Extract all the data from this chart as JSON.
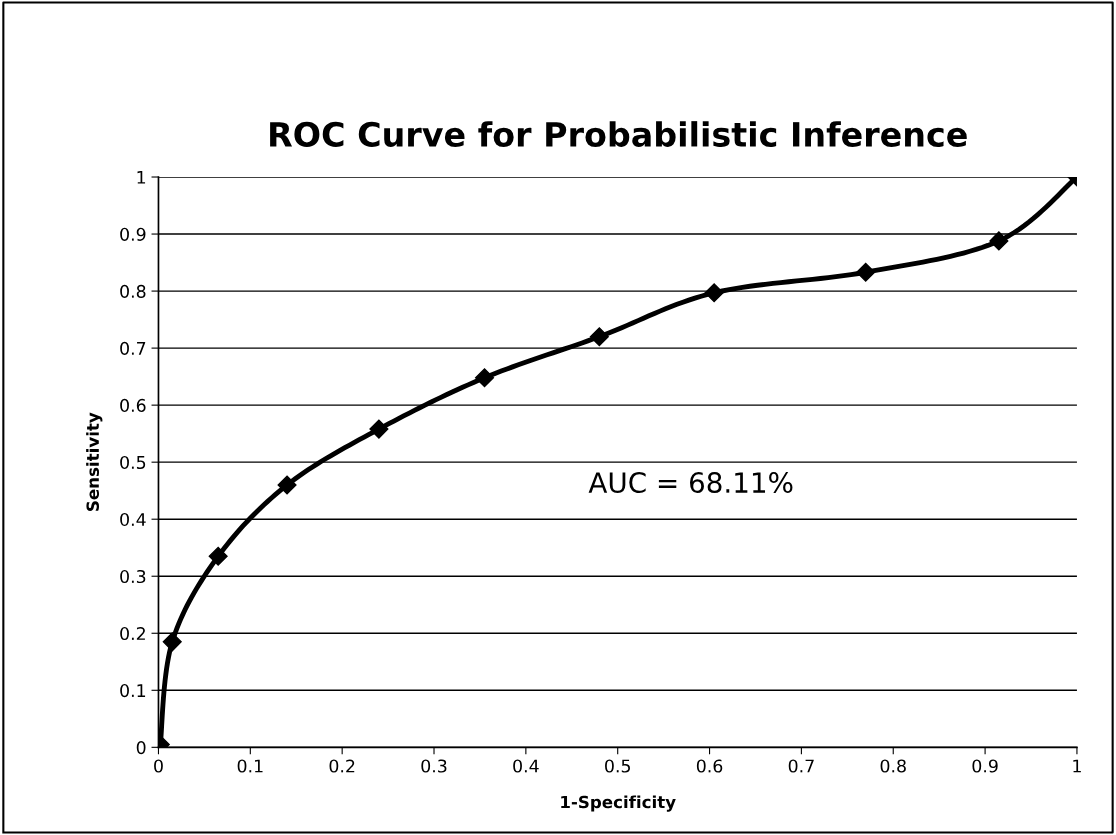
{
  "chart_data": {
    "type": "line",
    "title": "ROC Curve for Probabilistic Inference",
    "xlabel": "1-Specificity",
    "ylabel": "Sensitivity",
    "series": [
      {
        "color": "#000000",
        "x": [
          0.002,
          0.015,
          0.065,
          0.14,
          0.24,
          0.355,
          0.48,
          0.605,
          0.77,
          0.915,
          1.0
        ],
        "values": [
          0.005,
          0.185,
          0.335,
          0.46,
          0.558,
          0.648,
          0.72,
          0.797,
          0.833,
          0.888,
          1.0
        ]
      }
    ],
    "xlim": [
      0,
      1
    ],
    "xticks": [
      0,
      0.1,
      0.2,
      0.3,
      0.4,
      0.5,
      0.6,
      0.7,
      0.8,
      0.9,
      1
    ],
    "ylim": [
      0,
      1
    ],
    "yticks": [
      0,
      0.1,
      0.2,
      0.3,
      0.4,
      0.5,
      0.6,
      0.7,
      0.8,
      0.9,
      1
    ],
    "grid": "y",
    "marker": "diamond",
    "line_style": "solid",
    "legend": false,
    "annotations": [
      "AUC = 68.11%"
    ]
  }
}
